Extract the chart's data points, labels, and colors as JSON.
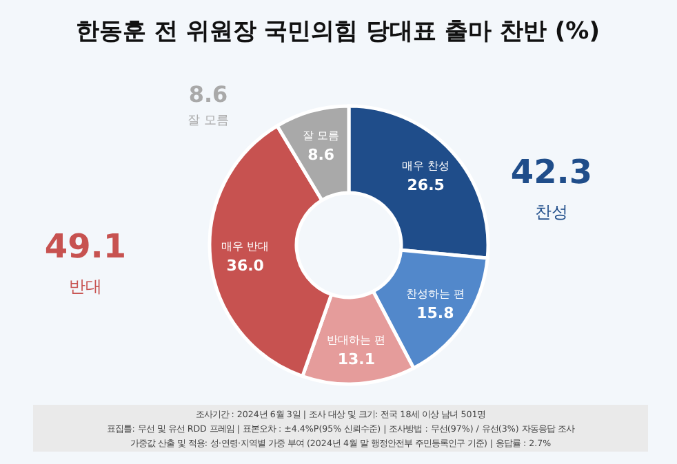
{
  "chart_data": {
    "type": "donut",
    "title": "한동훈 전 위원장 국민의힘 당대표 출마 찬반 (%)",
    "categories": [
      "매우 찬성",
      "찬성하는 편",
      "반대하는 편",
      "매우 반대",
      "잘 모름"
    ],
    "values": [
      26.5,
      15.8,
      13.1,
      36.0,
      8.6
    ],
    "colors": [
      "#1f4d8a",
      "#5288cb",
      "#e59c9b",
      "#c75250",
      "#a9a9a9"
    ],
    "value_labels": [
      "26.5",
      "15.8",
      "13.1",
      "36.0",
      "8.6"
    ],
    "annotations": [
      "42.3",
      "찬성",
      "49.1",
      "반대",
      "8.6",
      "잘 모름",
      "조사기간 : 2024년 6월 3일 | 조사 대상 및 크기: 전국 18세 이상 남녀 501명",
      "표집틀: 무선 및 유선 RDD 프레임 | 표본오차 : ±4.4%P(95% 신뢰수준) | 조사방법 : 무선(97%) / 유선(3%) 자동응답 조사",
      "가중값 산출 및 적용: 성·연령·지역별 가중 부여 (2024년 4월 말 행정안전부 주민등록인구 기준) | 응답률 : 2.7%"
    ]
  }
}
